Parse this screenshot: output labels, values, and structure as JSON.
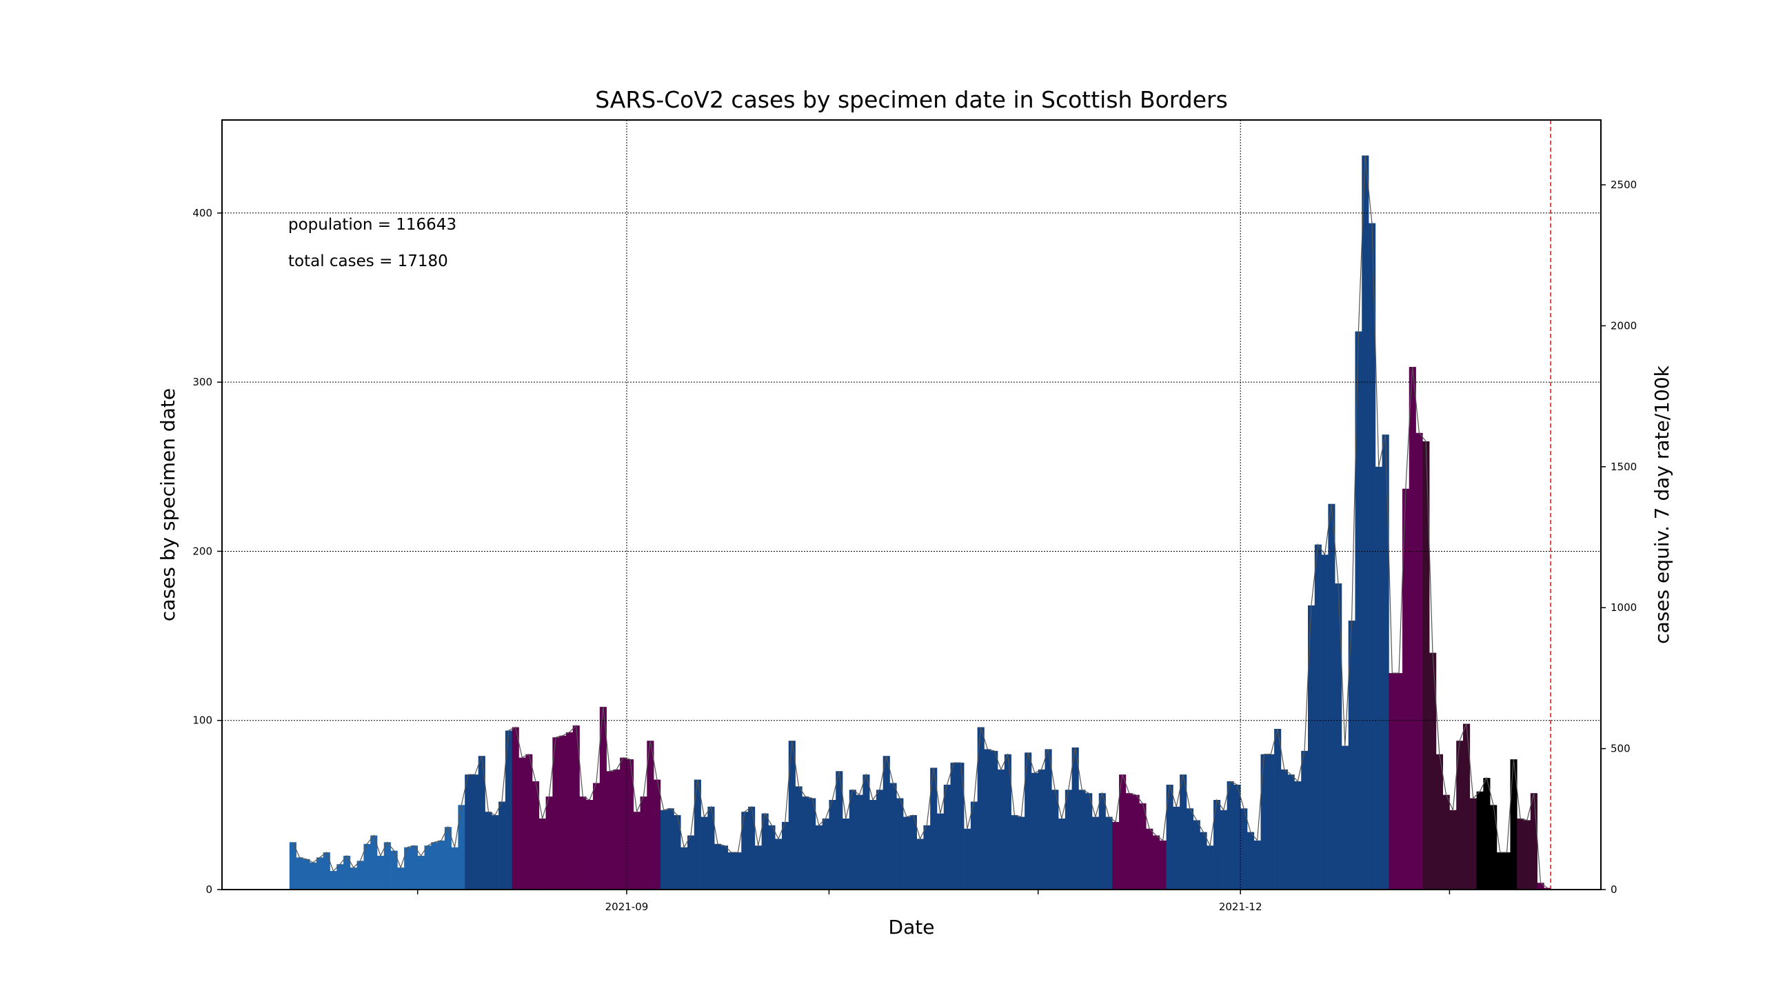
{
  "chart_data": {
    "type": "bar",
    "title": "SARS-CoV2 cases by specimen date in Scottish Borders",
    "xlabel": "Date",
    "ylabel": "cases by specimen date",
    "ylabel_right": "cases equiv. 7 day rate/100k",
    "annotations": {
      "population": "population = 116643",
      "total_cases": "total cases = 17180"
    },
    "x_start": "2021-07-13",
    "ylim": [
      0,
      455
    ],
    "ylim_right": [
      0,
      2730
    ],
    "yticks": [
      0,
      100,
      200,
      300,
      400
    ],
    "yticks_right": [
      0,
      500,
      1000,
      1500,
      2000,
      2500
    ],
    "xticks": [
      {
        "date": "2021-08-01",
        "label": ""
      },
      {
        "date": "2021-09-01",
        "label": "2021-09"
      },
      {
        "date": "2021-10-01",
        "label": ""
      },
      {
        "date": "2021-11-01",
        "label": ""
      },
      {
        "date": "2021-12-01",
        "label": "2021-12"
      },
      {
        "date": "2022-01-01",
        "label": ""
      }
    ],
    "grid": true,
    "cutoff_date": "2022-01-16",
    "values": [
      28,
      19,
      18,
      16,
      19,
      22,
      11,
      15,
      20,
      13,
      17,
      27,
      32,
      20,
      28,
      23,
      13,
      25,
      26,
      20,
      26,
      28,
      29,
      37,
      25,
      50,
      68,
      68,
      79,
      46,
      44,
      52,
      94,
      96,
      78,
      80,
      64,
      42,
      55,
      90,
      91,
      93,
      97,
      55,
      53,
      63,
      108,
      70,
      71,
      78,
      77,
      46,
      55,
      88,
      65,
      47,
      48,
      44,
      25,
      32,
      65,
      43,
      49,
      27,
      26,
      22,
      22,
      46,
      49,
      26,
      45,
      38,
      30,
      40,
      88,
      61,
      55,
      54,
      38,
      42,
      53,
      70,
      42,
      59,
      56,
      68,
      53,
      59,
      79,
      63,
      54,
      43,
      44,
      30,
      38,
      72,
      45,
      62,
      75,
      75,
      36,
      52,
      96,
      83,
      82,
      71,
      80,
      44,
      43,
      81,
      69,
      71,
      83,
      59,
      42,
      59,
      84,
      59,
      57,
      43,
      57,
      43,
      40,
      68,
      57,
      56,
      51,
      36,
      32,
      29,
      62,
      49,
      68,
      48,
      41,
      34,
      26,
      53,
      47,
      64,
      62,
      48,
      34,
      29,
      80,
      80,
      95,
      71,
      68,
      64,
      82,
      168,
      204,
      198,
      228,
      181,
      85,
      159,
      330,
      434,
      394,
      250,
      269,
      128,
      128,
      237,
      309,
      270,
      265,
      140,
      80,
      56,
      47,
      88,
      98,
      54,
      58,
      66,
      50,
      22,
      22,
      77,
      42,
      41,
      57,
      4,
      1
    ],
    "color_bands": [
      {
        "from": "2021-07-13",
        "to": "2021-08-07",
        "color": "#2166ac"
      },
      {
        "from": "2021-08-08",
        "to": "2021-08-14",
        "color": "#144280"
      },
      {
        "from": "2021-08-15",
        "to": "2021-09-05",
        "color": "#5c0050"
      },
      {
        "from": "2021-09-06",
        "to": "2021-11-11",
        "color": "#144280"
      },
      {
        "from": "2021-11-12",
        "to": "2021-11-19",
        "color": "#5c0050"
      },
      {
        "from": "2021-11-20",
        "to": "2021-12-22",
        "color": "#144280"
      },
      {
        "from": "2021-12-23",
        "to": "2021-12-27",
        "color": "#5c0050"
      },
      {
        "from": "2021-12-28",
        "to": "2022-01-04",
        "color": "#3a0a2c"
      },
      {
        "from": "2022-01-05",
        "to": "2022-01-10",
        "color": "#000000"
      },
      {
        "from": "2022-01-11",
        "to": "2022-01-13",
        "color": "#3a0a2c"
      },
      {
        "from": "2022-01-14",
        "to": "2022-01-17",
        "color": "#5c0050"
      },
      {
        "from": "2022-01-18",
        "to": "2022-01-19",
        "color": "#144280"
      },
      {
        "from": "2022-01-20",
        "to": "2022-01-25",
        "color": "#8aa2c0"
      }
    ],
    "colors": {
      "cutoff_line": "#ff0000",
      "trend_line": "#555555",
      "grid": "#000000"
    }
  }
}
